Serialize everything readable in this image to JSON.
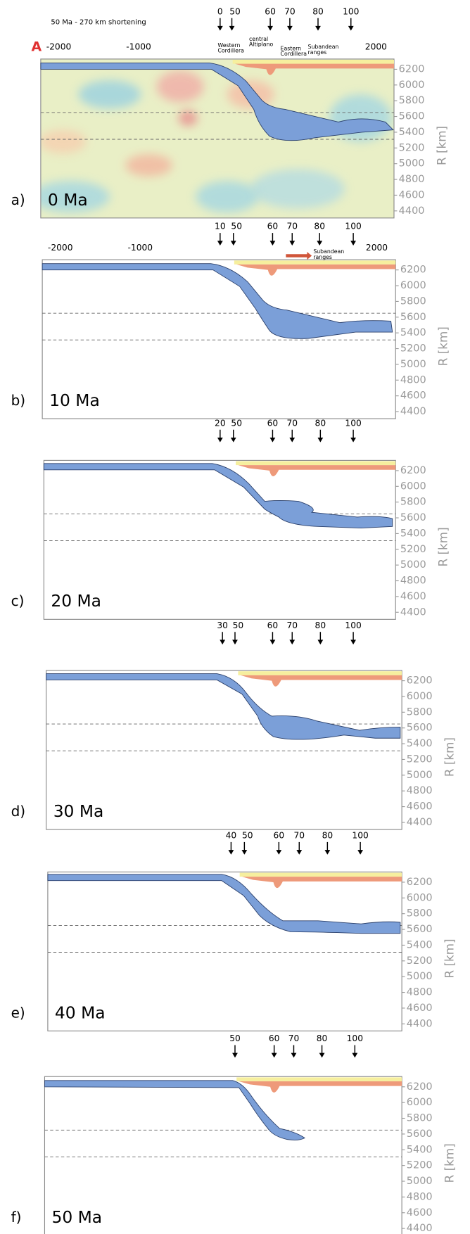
{
  "header": {
    "title": "50 Ma - 270 km shortening",
    "section": "A"
  },
  "panels": [
    {
      "label": "a)",
      "age": "0 Ma",
      "markers": [
        "0",
        "50",
        "60",
        "70",
        "80",
        "100"
      ],
      "x_ticks": [
        "-2000",
        "-1000",
        "2000"
      ],
      "regions": [
        [
          "Western",
          "Cordillera"
        ],
        [
          "central",
          "Altiplano"
        ],
        [
          "Eastern",
          "Cordillera"
        ],
        [
          "Subandean",
          "ranges"
        ]
      ],
      "r_ticks": [
        "6200",
        "6000",
        "5800",
        "5600",
        "5400",
        "5200",
        "5000",
        "4800",
        "4600",
        "4400"
      ],
      "r_label": "R [km]"
    },
    {
      "label": "b)",
      "age": "10 Ma",
      "markers": [
        "10",
        "50",
        "60",
        "70",
        "80",
        "100"
      ],
      "x_ticks": [
        "-2000",
        "-1000",
        "2000"
      ],
      "regions": [
        [
          "Subandean",
          "ranges"
        ]
      ],
      "r_ticks": [
        "6200",
        "6000",
        "5800",
        "5600",
        "5400",
        "5200",
        "5000",
        "4800",
        "4600",
        "4400"
      ],
      "r_label": "R [km]"
    },
    {
      "label": "c)",
      "age": "20 Ma",
      "markers": [
        "20",
        "50",
        "60",
        "70",
        "80",
        "100"
      ],
      "r_ticks": [
        "6200",
        "6000",
        "5800",
        "5600",
        "5400",
        "5200",
        "5000",
        "4800",
        "4600",
        "4400"
      ],
      "r_label": "R [km]"
    },
    {
      "label": "d)",
      "age": "30 Ma",
      "markers": [
        "30",
        "50",
        "60",
        "70",
        "80",
        "100"
      ],
      "r_ticks": [
        "6200",
        "6000",
        "5800",
        "5600",
        "5400",
        "5200",
        "5000",
        "4800",
        "4600",
        "4400"
      ],
      "r_label": "R [km]"
    },
    {
      "label": "e)",
      "age": "40 Ma",
      "markers": [
        "40",
        "50",
        "60",
        "70",
        "80",
        "100"
      ],
      "r_ticks": [
        "6200",
        "6000",
        "5800",
        "5600",
        "5400",
        "5200",
        "5000",
        "4800",
        "4600",
        "4400"
      ],
      "r_label": "R [km]"
    },
    {
      "label": "f)",
      "age": "50 Ma",
      "markers": [
        "50",
        "60",
        "70",
        "80",
        "100"
      ],
      "r_ticks": [
        "6200",
        "6000",
        "5800",
        "5600",
        "5400",
        "5200",
        "5000",
        "4800",
        "4600",
        "4400"
      ],
      "r_label": "R [km]"
    }
  ]
}
